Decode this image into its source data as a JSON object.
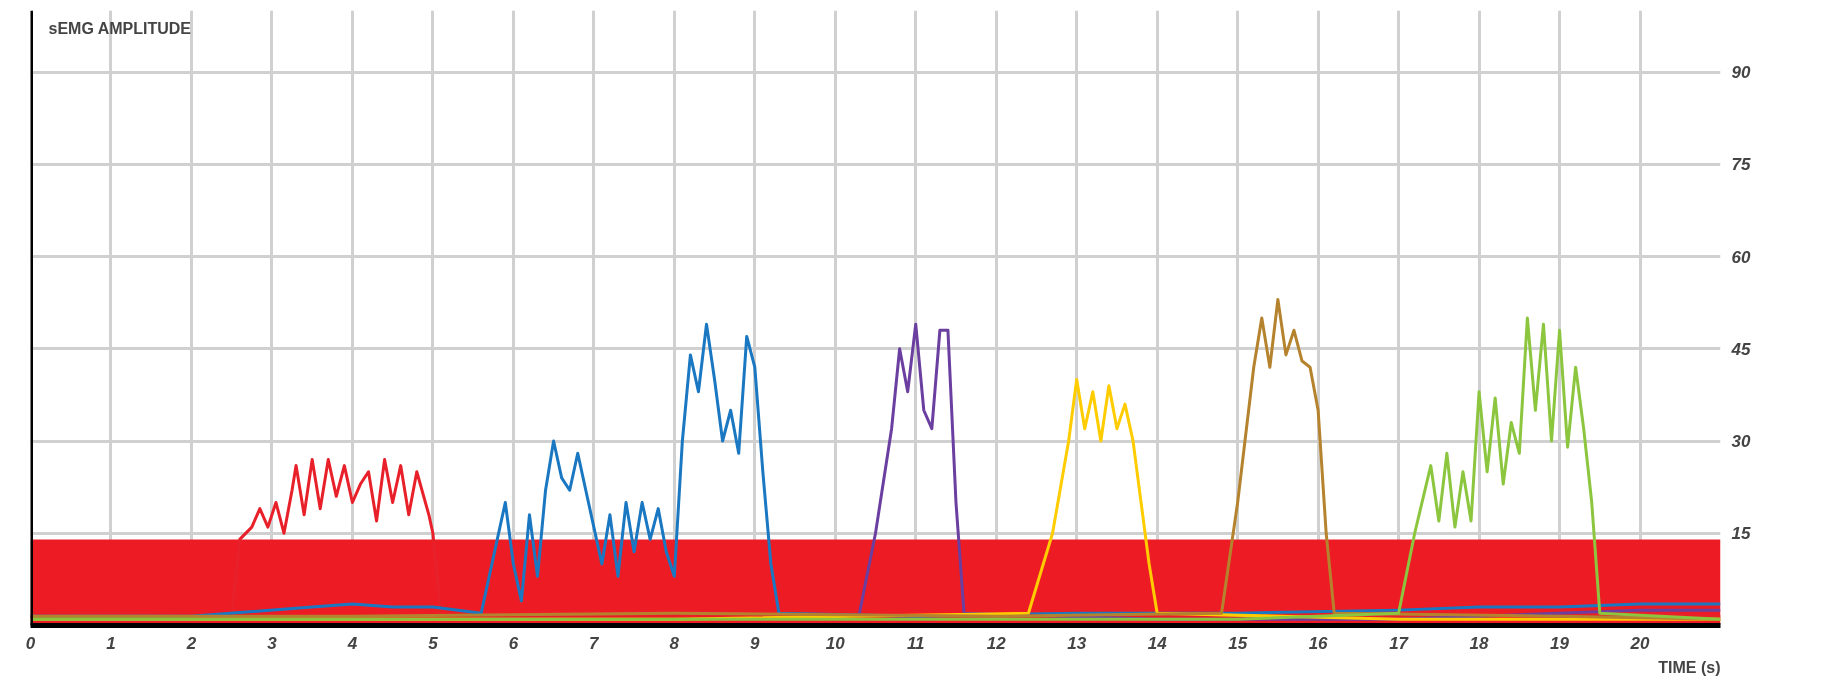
{
  "chart_data": {
    "type": "line",
    "ylabel": "sEMG AMPLITUDE",
    "xlabel": "TIME (s)",
    "xlim": [
      0,
      21
    ],
    "ylim": [
      0,
      100
    ],
    "xticks": [
      0,
      1,
      2,
      3,
      4,
      5,
      6,
      7,
      8,
      9,
      10,
      11,
      12,
      13,
      14,
      15,
      16,
      17,
      18,
      19,
      20
    ],
    "yticks": [
      15,
      30,
      45,
      60,
      75,
      90
    ],
    "grid": true,
    "marker": "none",
    "line_style": "solid",
    "bands": [
      {
        "axis": "y",
        "from": 0,
        "to": 14,
        "label": null,
        "color": "#ed1c24"
      }
    ],
    "series": [
      {
        "color": "#e8202a",
        "x": [
          0,
          1,
          2,
          2.5,
          2.6,
          2.75,
          2.85,
          2.95,
          3.05,
          3.15,
          3.25,
          3.3,
          3.4,
          3.5,
          3.6,
          3.7,
          3.8,
          3.9,
          4.0,
          4.1,
          4.2,
          4.3,
          4.4,
          4.5,
          4.6,
          4.7,
          4.8,
          4.95,
          5.0,
          5.1,
          6,
          8,
          10,
          12,
          14,
          16,
          18,
          20,
          21
        ],
        "values": [
          1.5,
          2,
          1.5,
          1.5,
          14,
          16,
          19,
          16,
          20,
          15,
          22,
          26,
          18,
          27,
          19,
          27,
          21,
          26,
          20,
          23,
          25,
          17,
          27,
          20,
          26,
          18,
          25,
          18,
          15,
          1.5,
          1.5,
          2,
          1.5,
          1.5,
          2,
          1.5,
          1.5,
          2,
          1.5
        ]
      },
      {
        "color": "#1a78c2",
        "x": [
          0,
          2,
          3.5,
          4,
          4.5,
          5,
          5.6,
          5.8,
          5.9,
          6.0,
          6.1,
          6.2,
          6.3,
          6.4,
          6.5,
          6.6,
          6.7,
          6.8,
          6.9,
          7.0,
          7.1,
          7.2,
          7.3,
          7.4,
          7.5,
          7.6,
          7.7,
          7.8,
          7.9,
          8.0,
          8.1,
          8.2,
          8.3,
          8.4,
          8.5,
          8.6,
          8.7,
          8.8,
          8.9,
          9.0,
          9.1,
          9.2,
          9.3,
          11,
          13,
          15,
          17,
          18,
          19,
          20,
          21
        ],
        "values": [
          1.5,
          1.5,
          3,
          3.5,
          3,
          3,
          2,
          14,
          20,
          10,
          4,
          18,
          8,
          22,
          30,
          24,
          22,
          28,
          22,
          16,
          10,
          18,
          8,
          20,
          12,
          20,
          14,
          19,
          12,
          8,
          30,
          44,
          38,
          49,
          40,
          30,
          35,
          28,
          47,
          42,
          25,
          10,
          2,
          1.5,
          2,
          2,
          2.5,
          3,
          3,
          3.5,
          3.5
        ]
      },
      {
        "color": "#6b3fa0",
        "x": [
          10.3,
          10.5,
          10.7,
          10.8,
          10.9,
          11.0,
          11.1,
          11.2,
          11.3,
          11.4,
          11.5,
          11.6,
          14,
          17,
          20,
          21
        ],
        "values": [
          2,
          15,
          32,
          45,
          38,
          49,
          35,
          32,
          48,
          48,
          20,
          2,
          1,
          1,
          2.5,
          2.5
        ]
      },
      {
        "color": "#ffcc00",
        "x": [
          0,
          4,
          8,
          12.4,
          12.7,
          12.9,
          13.0,
          13.1,
          13.2,
          13.3,
          13.4,
          13.5,
          13.6,
          13.7,
          13.9,
          14.0,
          17,
          21
        ],
        "values": [
          1,
          1,
          1,
          2,
          15,
          30,
          40,
          32,
          38,
          30,
          39,
          32,
          36,
          30,
          10,
          2,
          1,
          1
        ]
      },
      {
        "color": "#b5832e",
        "x": [
          0,
          4,
          8,
          12,
          14.8,
          15.0,
          15.2,
          15.3,
          15.4,
          15.5,
          15.6,
          15.7,
          15.8,
          15.9,
          16.0,
          16.1,
          16.2,
          19,
          21
        ],
        "values": [
          1.5,
          1.5,
          2,
          1.5,
          2,
          20,
          42,
          50,
          42,
          53,
          44,
          48,
          43,
          42,
          35,
          15,
          2,
          1.5,
          1
        ]
      },
      {
        "color": "#8cc63f",
        "x": [
          0,
          5,
          10,
          15,
          17.0,
          17.2,
          17.4,
          17.5,
          17.6,
          17.7,
          17.8,
          17.9,
          18.0,
          18.1,
          18.2,
          18.3,
          18.4,
          18.5,
          18.6,
          18.7,
          18.8,
          18.9,
          19.0,
          19.1,
          19.2,
          19.3,
          19.4,
          19.5,
          21
        ],
        "values": [
          1,
          1,
          1,
          1,
          2,
          15,
          26,
          17,
          28,
          16,
          25,
          17,
          38,
          25,
          37,
          23,
          33,
          28,
          50,
          35,
          49,
          30,
          48,
          29,
          42,
          32,
          20,
          2,
          1
        ]
      }
    ]
  }
}
